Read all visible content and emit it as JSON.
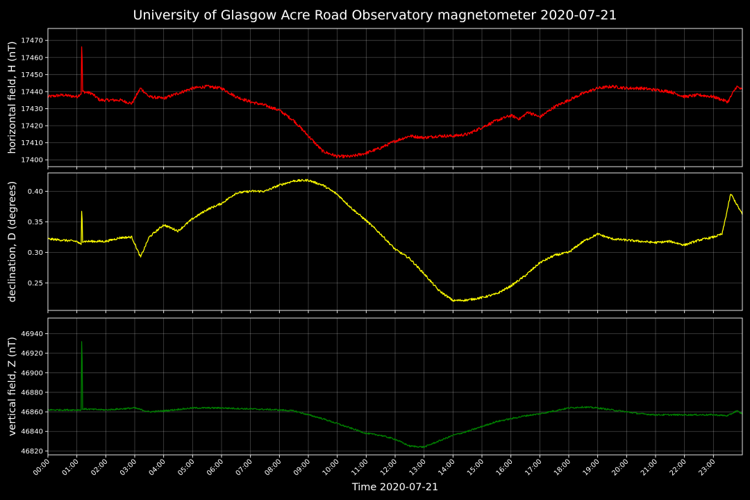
{
  "chart_data": [
    {
      "type": "line",
      "title": "University of Glasgow Acre Road Observatory magnetometer 2020-07-21",
      "ylabel": "horizontal field, H (nT)",
      "color": "#ff0000",
      "ylim": [
        17396,
        17477
      ],
      "yticks": [
        "17400",
        "17410",
        "17420",
        "17430",
        "17440",
        "17450",
        "17460",
        "17470"
      ],
      "x_hours": [
        0,
        0.5,
        1.0,
        1.15,
        1.17,
        1.2,
        1.5,
        1.8,
        2.5,
        2.9,
        3.2,
        3.5,
        4.0,
        4.5,
        5.0,
        5.5,
        6.0,
        6.5,
        7.0,
        7.5,
        8.0,
        8.5,
        9.0,
        9.5,
        10.0,
        10.5,
        11.0,
        11.5,
        12.0,
        12.5,
        13.0,
        13.5,
        14.0,
        14.5,
        15.0,
        15.5,
        16.0,
        16.3,
        16.6,
        17.0,
        17.5,
        18.0,
        18.5,
        19.0,
        19.5,
        20.0,
        20.5,
        21.0,
        21.5,
        22.0,
        22.5,
        23.0,
        23.5,
        23.8,
        24.0
      ],
      "values": [
        17437,
        17438,
        17437,
        17439,
        17473,
        17440,
        17439,
        17435,
        17435,
        17433,
        17442,
        17437,
        17436,
        17439,
        17442,
        17443,
        17442,
        17437,
        17434,
        17432,
        17429,
        17423,
        17414,
        17405,
        17402,
        17402,
        17404,
        17407,
        17411,
        17414,
        17413,
        17414,
        17414,
        17415,
        17419,
        17423,
        17426,
        17424,
        17428,
        17425,
        17431,
        17435,
        17439,
        17442,
        17443,
        17442,
        17442,
        17441,
        17440,
        17437,
        17438,
        17437,
        17434,
        17443,
        17441
      ],
      "noise": 0.9
    },
    {
      "type": "line",
      "ylabel": "declination, D (degrees)",
      "color": "#ffff00",
      "ylim": [
        0.205,
        0.43
      ],
      "yticks": [
        "0.25",
        "0.30",
        "0.35",
        "0.40"
      ],
      "x_hours": [
        0,
        0.5,
        1.0,
        1.15,
        1.17,
        1.2,
        1.5,
        2.0,
        2.5,
        2.9,
        3.2,
        3.5,
        4.0,
        4.5,
        5.0,
        5.5,
        6.0,
        6.5,
        7.0,
        7.5,
        8.0,
        8.5,
        9.0,
        9.5,
        10.0,
        10.5,
        11.0,
        11.5,
        12.0,
        12.5,
        13.0,
        13.5,
        14.0,
        14.5,
        15.0,
        15.5,
        16.0,
        16.5,
        17.0,
        17.5,
        18.0,
        18.5,
        19.0,
        19.5,
        20.0,
        20.5,
        21.0,
        21.5,
        22.0,
        22.5,
        23.0,
        23.3,
        23.6,
        24.0
      ],
      "values": [
        0.322,
        0.32,
        0.318,
        0.312,
        0.383,
        0.318,
        0.318,
        0.318,
        0.324,
        0.325,
        0.292,
        0.325,
        0.345,
        0.335,
        0.355,
        0.37,
        0.38,
        0.397,
        0.4,
        0.4,
        0.41,
        0.417,
        0.418,
        0.41,
        0.395,
        0.372,
        0.352,
        0.33,
        0.305,
        0.29,
        0.265,
        0.238,
        0.221,
        0.222,
        0.226,
        0.232,
        0.245,
        0.262,
        0.283,
        0.295,
        0.3,
        0.318,
        0.33,
        0.322,
        0.32,
        0.318,
        0.316,
        0.318,
        0.312,
        0.32,
        0.325,
        0.33,
        0.396,
        0.362
      ],
      "noise": 0.0018
    },
    {
      "type": "line",
      "ylabel": "vertical field, Z (nT)",
      "xlabel": "Time 2020-07-21",
      "color": "#008000",
      "ylim": [
        46816,
        46956
      ],
      "yticks": [
        "46820",
        "46840",
        "46860",
        "46880",
        "46900",
        "46920",
        "46940"
      ],
      "xticks": [
        "00:00",
        "01:00",
        "02:00",
        "03:00",
        "04:00",
        "05:00",
        "06:00",
        "07:00",
        "08:00",
        "09:00",
        "10:00",
        "11:00",
        "12:00",
        "13:00",
        "14:00",
        "15:00",
        "16:00",
        "17:00",
        "18:00",
        "19:00",
        "20:00",
        "21:00",
        "22:00",
        "23:00"
      ],
      "x_hours": [
        0,
        1.0,
        1.15,
        1.17,
        1.2,
        2.0,
        3.0,
        3.5,
        4.0,
        5.0,
        6.0,
        7.0,
        8.0,
        8.5,
        9.0,
        9.5,
        10.0,
        10.5,
        11.0,
        11.5,
        12.0,
        12.5,
        13.0,
        13.5,
        14.0,
        14.5,
        15.0,
        15.5,
        16.0,
        16.5,
        17.0,
        17.5,
        18.0,
        18.5,
        19.0,
        19.5,
        20.0,
        20.5,
        21.0,
        21.5,
        22.0,
        22.5,
        23.0,
        23.5,
        23.8,
        24.0
      ],
      "values": [
        46862,
        46862,
        46862,
        46951,
        46863,
        46862,
        46864,
        46860,
        46861,
        46864,
        46864,
        46863,
        46862,
        46861,
        46857,
        46853,
        46848,
        46843,
        46838,
        46836,
        46832,
        46825,
        46824,
        46830,
        46836,
        46840,
        46845,
        46850,
        46853,
        46856,
        46858,
        46861,
        46864,
        46865,
        46864,
        46862,
        46860,
        46858,
        46857,
        46857,
        46857,
        46857,
        46857,
        46856,
        46861,
        46858
      ],
      "noise": 0.8
    }
  ]
}
